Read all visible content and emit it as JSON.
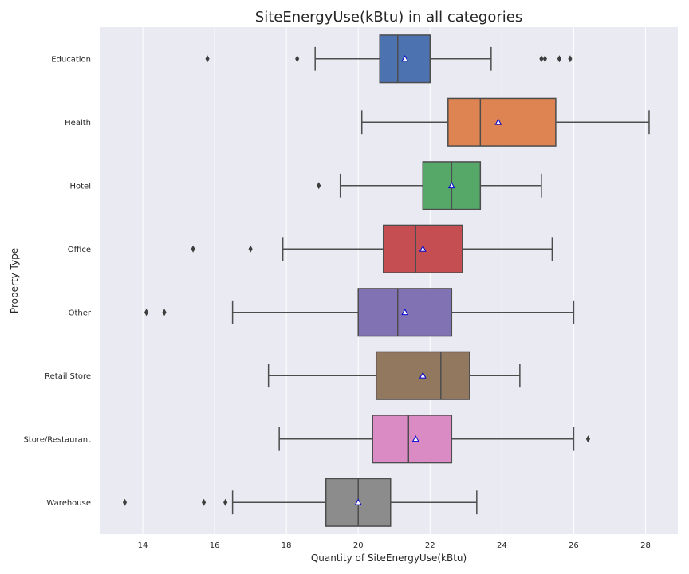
{
  "chart_data": {
    "type": "boxplot",
    "orientation": "horizontal",
    "title": "SiteEnergyUse(kBtu) in all categories",
    "xlabel": "Quantity of SiteEnergyUse(kBtu)",
    "ylabel": "Property Type",
    "xlim": [
      12.8,
      28.9
    ],
    "xticks": [
      14,
      16,
      18,
      20,
      22,
      24,
      26,
      28
    ],
    "grid": true,
    "legend": "none",
    "categories": [
      "Education",
      "Health",
      "Hotel",
      "Office",
      "Other",
      "Retail Store",
      "Store/Restaurant",
      "Warehouse"
    ],
    "series": [
      {
        "category": "Education",
        "color": "#4c72b0",
        "whisker_low": 18.8,
        "q1": 20.6,
        "median": 21.1,
        "q3": 22.0,
        "whisker_high": 23.7,
        "mean": 21.3,
        "outliers": [
          15.8,
          18.3,
          25.1,
          25.2,
          25.6,
          25.9
        ]
      },
      {
        "category": "Health",
        "color": "#dd8452",
        "whisker_low": 20.1,
        "q1": 22.5,
        "median": 23.4,
        "q3": 25.5,
        "whisker_high": 28.1,
        "mean": 23.9,
        "outliers": []
      },
      {
        "category": "Hotel",
        "color": "#55a868",
        "whisker_low": 19.5,
        "q1": 21.8,
        "median": 22.6,
        "q3": 23.4,
        "whisker_high": 25.1,
        "mean": 22.6,
        "outliers": [
          18.9
        ]
      },
      {
        "category": "Office",
        "color": "#c44e52",
        "whisker_low": 17.9,
        "q1": 20.7,
        "median": 21.6,
        "q3": 22.9,
        "whisker_high": 25.4,
        "mean": 21.8,
        "outliers": [
          15.4,
          17.0
        ]
      },
      {
        "category": "Other",
        "color": "#8172b3",
        "whisker_low": 16.5,
        "q1": 20.0,
        "median": 21.1,
        "q3": 22.6,
        "whisker_high": 26.0,
        "mean": 21.3,
        "outliers": [
          14.1,
          14.6
        ]
      },
      {
        "category": "Retail Store",
        "color": "#937860",
        "whisker_low": 17.5,
        "q1": 20.5,
        "median": 22.3,
        "q3": 23.1,
        "whisker_high": 24.5,
        "mean": 21.8,
        "outliers": []
      },
      {
        "category": "Store/Restaurant",
        "color": "#da8bc3",
        "whisker_low": 17.8,
        "q1": 20.4,
        "median": 21.4,
        "q3": 22.6,
        "whisker_high": 26.0,
        "mean": 21.6,
        "outliers": [
          26.4
        ]
      },
      {
        "category": "Warehouse",
        "color": "#8c8c8c",
        "whisker_low": 16.5,
        "q1": 19.1,
        "median": 20.0,
        "q3": 20.9,
        "whisker_high": 23.3,
        "mean": 20.0,
        "outliers": [
          13.5,
          15.7,
          16.3
        ]
      }
    ]
  }
}
